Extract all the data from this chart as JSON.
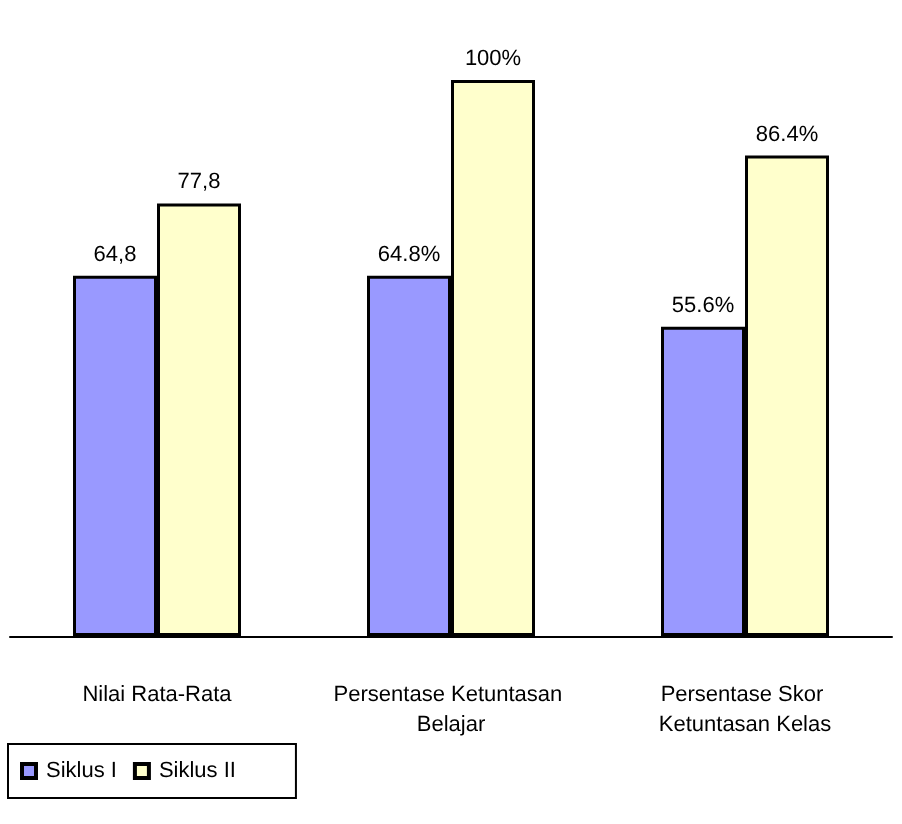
{
  "chart_data": {
    "type": "bar",
    "categories": [
      "Nilai Rata-Rata",
      "Persentase Ketuntasan Belajar",
      "Persentase Skor Ketuntasan Kelas"
    ],
    "series": [
      {
        "name": "Siklus I",
        "color": "#9999ff",
        "values": [
          64.8,
          64.8,
          55.6
        ],
        "value_labels": [
          "64,8",
          "64.8%",
          "55.6%"
        ]
      },
      {
        "name": "Siklus II",
        "color": "#ffffcc",
        "values": [
          77.8,
          100,
          86.4
        ],
        "value_labels": [
          "77,8",
          "100%",
          "86.4%"
        ]
      }
    ],
    "tick_labels": "x",
    "grid": false,
    "legend": "bottom left"
  }
}
